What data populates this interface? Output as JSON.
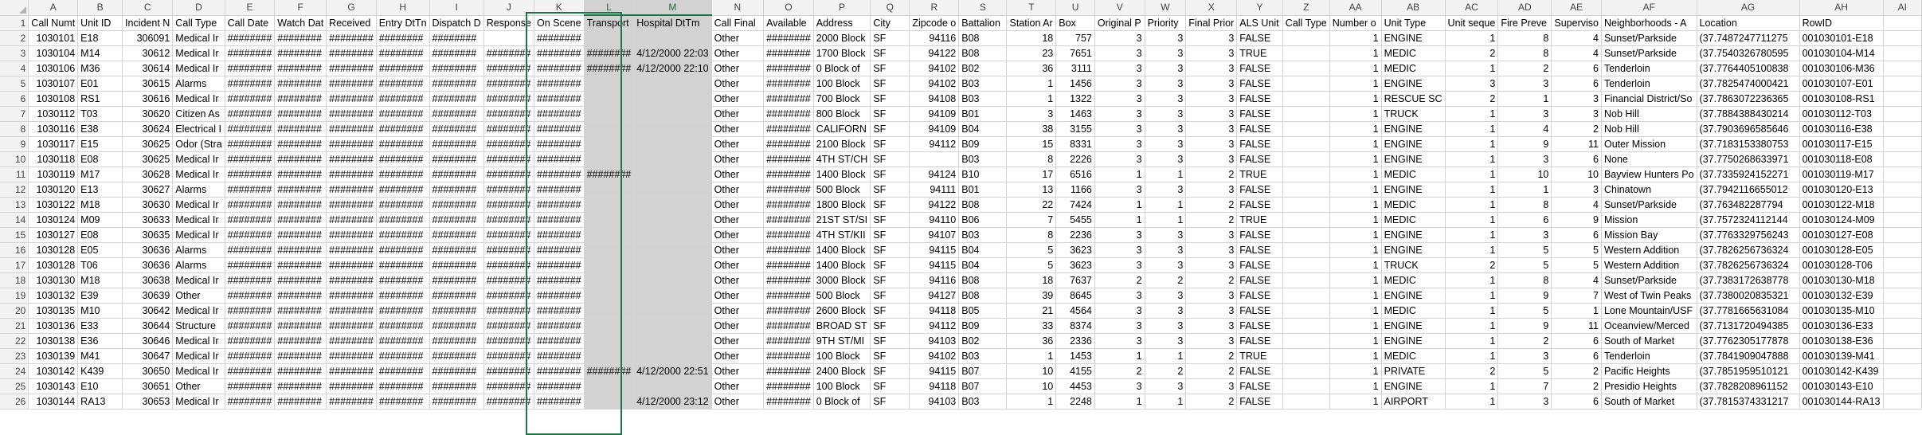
{
  "columns": [
    {
      "letter": "A",
      "header": "Call Numt",
      "align": "right"
    },
    {
      "letter": "B",
      "header": "Unit ID",
      "align": "left"
    },
    {
      "letter": "C",
      "header": "Incident N",
      "align": "right"
    },
    {
      "letter": "D",
      "header": "Call Type",
      "align": "left"
    },
    {
      "letter": "E",
      "header": "Call Date",
      "align": "left"
    },
    {
      "letter": "F",
      "header": "Watch Dat",
      "align": "left"
    },
    {
      "letter": "G",
      "header": "Received",
      "align": "left"
    },
    {
      "letter": "H",
      "header": "Entry DtTn",
      "align": "left"
    },
    {
      "letter": "I",
      "header": "Dispatch D",
      "align": "left"
    },
    {
      "letter": "J",
      "header": "Response",
      "align": "left"
    },
    {
      "letter": "K",
      "header": "On Scene",
      "align": "left"
    },
    {
      "letter": "L",
      "header": "Transport",
      "align": "left"
    },
    {
      "letter": "M",
      "header": "Hospital DtTm",
      "align": "right"
    },
    {
      "letter": "N",
      "header": "Call Final",
      "align": "left"
    },
    {
      "letter": "O",
      "header": "Available",
      "align": "left"
    },
    {
      "letter": "P",
      "header": "Address",
      "align": "left"
    },
    {
      "letter": "Q",
      "header": "City",
      "align": "left"
    },
    {
      "letter": "R",
      "header": "Zipcode o",
      "align": "right"
    },
    {
      "letter": "S",
      "header": "Battalion",
      "align": "left"
    },
    {
      "letter": "T",
      "header": "Station Ar",
      "align": "right"
    },
    {
      "letter": "U",
      "header": "Box",
      "align": "right"
    },
    {
      "letter": "V",
      "header": "Original P",
      "align": "right"
    },
    {
      "letter": "W",
      "header": "Priority",
      "align": "right"
    },
    {
      "letter": "X",
      "header": "Final Prior",
      "align": "right"
    },
    {
      "letter": "Y",
      "header": "ALS Unit",
      "align": "left"
    },
    {
      "letter": "Z",
      "header": "Call Type",
      "align": "left"
    },
    {
      "letter": "AA",
      "header": "Number o",
      "align": "right"
    },
    {
      "letter": "AB",
      "header": "Unit Type",
      "align": "left"
    },
    {
      "letter": "AC",
      "header": "Unit seque",
      "align": "right"
    },
    {
      "letter": "AD",
      "header": "Fire Preve",
      "align": "right"
    },
    {
      "letter": "AE",
      "header": "Superviso",
      "align": "right"
    },
    {
      "letter": "AF",
      "header": "Neighborhoods - A",
      "align": "left"
    },
    {
      "letter": "AG",
      "header": "Location",
      "align": "left"
    },
    {
      "letter": "AH",
      "header": "RowID",
      "align": "left"
    },
    {
      "letter": "AI",
      "header": "",
      "align": "left"
    }
  ],
  "selected_columns": [
    "L",
    "M"
  ],
  "rows": [
    [
      "1030101",
      "E18",
      "306091",
      "Medical Ir",
      "########",
      "########",
      "########",
      "########",
      "########",
      "",
      "########",
      "",
      "",
      "Other",
      "########",
      "2000 Block",
      "SF",
      "94116",
      "B08",
      "18",
      "757",
      "3",
      "3",
      "3",
      "FALSE",
      "",
      "1",
      "ENGINE",
      "1",
      "8",
      "4",
      "Sunset/Parkside",
      "(37.7487247711275",
      "001030101-E18",
      ""
    ],
    [
      "1030104",
      "M14",
      "30612",
      "Medical Ir",
      "########",
      "########",
      "########",
      "########",
      "########",
      "########",
      "########",
      "########",
      "4/12/2000 22:03",
      "Other",
      "########",
      "1700 Block",
      "SF",
      "94122",
      "B08",
      "23",
      "7651",
      "3",
      "3",
      "3",
      "TRUE",
      "",
      "1",
      "MEDIC",
      "2",
      "8",
      "4",
      "Sunset/Parkside",
      "(37.7540326780595",
      "001030104-M14",
      ""
    ],
    [
      "1030106",
      "M36",
      "30614",
      "Medical Ir",
      "########",
      "########",
      "########",
      "########",
      "########",
      "########",
      "########",
      "########",
      "4/12/2000 22:10",
      "Other",
      "########",
      "0 Block of",
      "SF",
      "94102",
      "B02",
      "36",
      "3111",
      "3",
      "3",
      "3",
      "FALSE",
      "",
      "1",
      "MEDIC",
      "1",
      "2",
      "6",
      "Tenderloin",
      "(37.7764405100838",
      "001030106-M36",
      ""
    ],
    [
      "1030107",
      "E01",
      "30615",
      "Alarms",
      "########",
      "########",
      "########",
      "########",
      "########",
      "########",
      "########",
      "",
      "",
      "Other",
      "########",
      "100 Block",
      "SF",
      "94102",
      "B03",
      "1",
      "1456",
      "3",
      "3",
      "3",
      "FALSE",
      "",
      "1",
      "ENGINE",
      "3",
      "3",
      "6",
      "Tenderloin",
      "(37.7825474000421",
      "001030107-E01",
      ""
    ],
    [
      "1030108",
      "RS1",
      "30616",
      "Medical Ir",
      "########",
      "########",
      "########",
      "########",
      "########",
      "########",
      "########",
      "",
      "",
      "Other",
      "########",
      "700 Block",
      "SF",
      "94108",
      "B03",
      "1",
      "1322",
      "3",
      "3",
      "3",
      "FALSE",
      "",
      "1",
      "RESCUE SC",
      "2",
      "1",
      "3",
      "Financial District/So",
      "(37.7863072236365",
      "001030108-RS1",
      ""
    ],
    [
      "1030112",
      "T03",
      "30620",
      "Citizen As",
      "########",
      "########",
      "########",
      "########",
      "########",
      "########",
      "########",
      "",
      "",
      "Other",
      "########",
      "800 Block",
      "SF",
      "94109",
      "B01",
      "3",
      "1463",
      "3",
      "3",
      "3",
      "FALSE",
      "",
      "1",
      "TRUCK",
      "1",
      "3",
      "3",
      "Nob Hill",
      "(37.7884388430214",
      "001030112-T03",
      ""
    ],
    [
      "1030116",
      "E38",
      "30624",
      "Electrical I",
      "########",
      "########",
      "########",
      "########",
      "########",
      "########",
      "########",
      "",
      "",
      "Other",
      "########",
      "CALIFORN",
      "SF",
      "94109",
      "B04",
      "38",
      "3155",
      "3",
      "3",
      "3",
      "FALSE",
      "",
      "1",
      "ENGINE",
      "1",
      "4",
      "2",
      "Nob Hill",
      "(37.7903696585646",
      "001030116-E38",
      ""
    ],
    [
      "1030117",
      "E15",
      "30625",
      "Odor (Stra",
      "########",
      "########",
      "########",
      "########",
      "########",
      "########",
      "########",
      "",
      "",
      "Other",
      "########",
      "2100 Block",
      "SF",
      "94112",
      "B09",
      "15",
      "8331",
      "3",
      "3",
      "3",
      "FALSE",
      "",
      "1",
      "ENGINE",
      "1",
      "9",
      "11",
      "Outer Mission",
      "(37.7183153380753",
      "001030117-E15",
      ""
    ],
    [
      "1030118",
      "E08",
      "30625",
      "Medical Ir",
      "########",
      "########",
      "########",
      "########",
      "########",
      "########",
      "########",
      "",
      "",
      "Other",
      "########",
      "4TH ST/CH",
      "SF",
      "",
      "B03",
      "8",
      "2226",
      "3",
      "3",
      "3",
      "FALSE",
      "",
      "1",
      "ENGINE",
      "1",
      "3",
      "6",
      "None",
      "(37.7750268633971",
      "001030118-E08",
      ""
    ],
    [
      "1030119",
      "M17",
      "30628",
      "Medical Ir",
      "########",
      "########",
      "########",
      "########",
      "########",
      "########",
      "########",
      "########",
      "",
      "Other",
      "########",
      "1400 Block",
      "SF",
      "94124",
      "B10",
      "17",
      "6516",
      "1",
      "1",
      "2",
      "TRUE",
      "",
      "1",
      "MEDIC",
      "1",
      "10",
      "10",
      "Bayview Hunters Po",
      "(37.7335924152271",
      "001030119-M17",
      ""
    ],
    [
      "1030120",
      "E13",
      "30627",
      "Alarms",
      "########",
      "########",
      "########",
      "########",
      "########",
      "########",
      "########",
      "",
      "",
      "Other",
      "########",
      "500 Block",
      "SF",
      "94111",
      "B01",
      "13",
      "1166",
      "3",
      "3",
      "3",
      "FALSE",
      "",
      "1",
      "ENGINE",
      "1",
      "1",
      "3",
      "Chinatown",
      "(37.7942116655012",
      "001030120-E13",
      ""
    ],
    [
      "1030122",
      "M18",
      "30630",
      "Medical Ir",
      "########",
      "########",
      "########",
      "########",
      "########",
      "########",
      "########",
      "",
      "",
      "Other",
      "########",
      "1800 Block",
      "SF",
      "94122",
      "B08",
      "22",
      "7424",
      "1",
      "1",
      "2",
      "FALSE",
      "",
      "1",
      "MEDIC",
      "1",
      "8",
      "4",
      "Sunset/Parkside",
      "(37.763482287794",
      "001030122-M18",
      ""
    ],
    [
      "1030124",
      "M09",
      "30633",
      "Medical Ir",
      "########",
      "########",
      "########",
      "########",
      "########",
      "########",
      "########",
      "",
      "",
      "Other",
      "########",
      "21ST ST/SI",
      "SF",
      "94110",
      "B06",
      "7",
      "5455",
      "1",
      "1",
      "2",
      "TRUE",
      "",
      "1",
      "MEDIC",
      "1",
      "6",
      "9",
      "Mission",
      "(37.7572324112144",
      "001030124-M09",
      ""
    ],
    [
      "1030127",
      "E08",
      "30635",
      "Medical Ir",
      "########",
      "########",
      "########",
      "########",
      "########",
      "########",
      "########",
      "",
      "",
      "Other",
      "########",
      "4TH ST/KII",
      "SF",
      "94107",
      "B03",
      "8",
      "2236",
      "3",
      "3",
      "3",
      "FALSE",
      "",
      "1",
      "ENGINE",
      "1",
      "3",
      "6",
      "Mission Bay",
      "(37.7763329756243",
      "001030127-E08",
      ""
    ],
    [
      "1030128",
      "E05",
      "30636",
      "Alarms",
      "########",
      "########",
      "########",
      "########",
      "########",
      "########",
      "########",
      "",
      "",
      "Other",
      "########",
      "1400 Block",
      "SF",
      "94115",
      "B04",
      "5",
      "3623",
      "3",
      "3",
      "3",
      "FALSE",
      "",
      "1",
      "ENGINE",
      "1",
      "5",
      "5",
      "Western Addition",
      "(37.7826256736324",
      "001030128-E05",
      ""
    ],
    [
      "1030128",
      "T06",
      "30636",
      "Alarms",
      "########",
      "########",
      "########",
      "########",
      "########",
      "########",
      "########",
      "",
      "",
      "Other",
      "########",
      "1400 Block",
      "SF",
      "94115",
      "B04",
      "5",
      "3623",
      "3",
      "3",
      "3",
      "FALSE",
      "",
      "1",
      "TRUCK",
      "2",
      "5",
      "5",
      "Western Addition",
      "(37.7826256736324",
      "001030128-T06",
      ""
    ],
    [
      "1030130",
      "M18",
      "30638",
      "Medical Ir",
      "########",
      "########",
      "########",
      "########",
      "########",
      "########",
      "########",
      "",
      "",
      "Other",
      "########",
      "3000 Block",
      "SF",
      "94116",
      "B08",
      "18",
      "7637",
      "2",
      "2",
      "2",
      "FALSE",
      "",
      "1",
      "MEDIC",
      "1",
      "8",
      "4",
      "Sunset/Parkside",
      "(37.7383172638778",
      "001030130-M18",
      ""
    ],
    [
      "1030132",
      "E39",
      "30639",
      "Other",
      "########",
      "########",
      "########",
      "########",
      "########",
      "########",
      "########",
      "",
      "",
      "Other",
      "########",
      "500 Block",
      "SF",
      "94127",
      "B08",
      "39",
      "8645",
      "3",
      "3",
      "3",
      "FALSE",
      "",
      "1",
      "ENGINE",
      "1",
      "9",
      "7",
      "West of Twin Peaks",
      "(37.7380020835321",
      "001030132-E39",
      ""
    ],
    [
      "1030135",
      "M10",
      "30642",
      "Medical Ir",
      "########",
      "########",
      "########",
      "########",
      "########",
      "########",
      "########",
      "",
      "",
      "Other",
      "########",
      "2600 Block",
      "SF",
      "94118",
      "B05",
      "21",
      "4564",
      "3",
      "3",
      "3",
      "FALSE",
      "",
      "1",
      "MEDIC",
      "1",
      "5",
      "1",
      "Lone Mountain/USF",
      "(37.7781665631084",
      "001030135-M10",
      ""
    ],
    [
      "1030136",
      "E33",
      "30644",
      "Structure",
      "########",
      "########",
      "########",
      "########",
      "########",
      "########",
      "########",
      "",
      "",
      "Other",
      "########",
      "BROAD ST",
      "SF",
      "94112",
      "B09",
      "33",
      "8374",
      "3",
      "3",
      "3",
      "FALSE",
      "",
      "1",
      "ENGINE",
      "1",
      "9",
      "11",
      "Oceanview/Merced",
      "(37.7131720494385",
      "001030136-E33",
      ""
    ],
    [
      "1030138",
      "E36",
      "30646",
      "Medical Ir",
      "########",
      "########",
      "########",
      "########",
      "########",
      "########",
      "########",
      "",
      "",
      "Other",
      "########",
      "9TH ST/MI",
      "SF",
      "94103",
      "B02",
      "36",
      "2336",
      "3",
      "3",
      "3",
      "FALSE",
      "",
      "1",
      "ENGINE",
      "1",
      "2",
      "6",
      "South of Market",
      "(37.7762305177878",
      "001030138-E36",
      ""
    ],
    [
      "1030139",
      "M41",
      "30647",
      "Medical Ir",
      "########",
      "########",
      "########",
      "########",
      "########",
      "########",
      "########",
      "",
      "",
      "Other",
      "########",
      "100 Block",
      "SF",
      "94102",
      "B03",
      "1",
      "1453",
      "1",
      "1",
      "2",
      "TRUE",
      "",
      "1",
      "MEDIC",
      "1",
      "3",
      "6",
      "Tenderloin",
      "(37.7841909047888",
      "001030139-M41",
      ""
    ],
    [
      "1030142",
      "K439",
      "30650",
      "Medical Ir",
      "########",
      "########",
      "########",
      "########",
      "########",
      "########",
      "########",
      "########",
      "4/12/2000 22:51",
      "Other",
      "########",
      "2400 Block",
      "SF",
      "94115",
      "B07",
      "10",
      "4155",
      "2",
      "2",
      "2",
      "FALSE",
      "",
      "1",
      "PRIVATE",
      "2",
      "5",
      "2",
      "Pacific Heights",
      "(37.7851959510121",
      "001030142-K439",
      ""
    ],
    [
      "1030143",
      "E10",
      "30651",
      "Other",
      "########",
      "########",
      "########",
      "########",
      "########",
      "########",
      "########",
      "",
      "",
      "Other",
      "########",
      "100 Block",
      "SF",
      "94118",
      "B07",
      "10",
      "4453",
      "3",
      "3",
      "3",
      "FALSE",
      "",
      "1",
      "ENGINE",
      "1",
      "7",
      "2",
      "Presidio Heights",
      "(37.7828208961152",
      "001030143-E10",
      ""
    ],
    [
      "1030144",
      "RA13",
      "30653",
      "Medical Ir",
      "########",
      "########",
      "########",
      "########",
      "########",
      "########",
      "########",
      "",
      "4/12/2000 23:12",
      "Other",
      "########",
      "0 Block of",
      "SF",
      "94103",
      "B03",
      "1",
      "2248",
      "1",
      "1",
      "2",
      "FALSE",
      "",
      "1",
      "AIRPORT",
      "1",
      "3",
      "6",
      "South of Market",
      "(37.7815374331217",
      "001030144-RA13",
      ""
    ]
  ]
}
